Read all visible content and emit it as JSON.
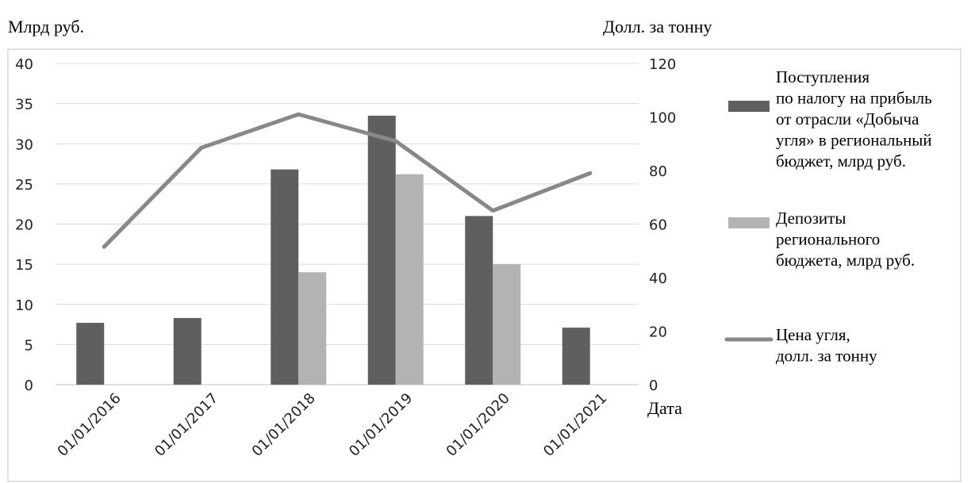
{
  "chart_data": {
    "type": "bar",
    "categories": [
      "01/01/2016",
      "01/01/2017",
      "01/01/2018",
      "01/01/2019",
      "01/01/2020",
      "01/01/2021"
    ],
    "ylabel_left": "Млрд руб.",
    "ylabel_right": "Долл. за тонну",
    "xlabel": "Дата",
    "ylim_left": [
      0,
      40
    ],
    "yticks_left": [
      "0",
      "5",
      "10",
      "15",
      "20",
      "25",
      "30",
      "35",
      "40"
    ],
    "ylim_right": [
      0,
      120
    ],
    "yticks_right": [
      "0",
      "20",
      "40",
      "60",
      "80",
      "100",
      "120"
    ],
    "grid": true,
    "legend_position": "right",
    "series": [
      {
        "name": "Поступления по налогу на прибыль от отрасли «Добыча угля» в региональный бюджет, млрд руб.",
        "legend_lines": [
          "Поступления",
          "по налогу на прибыль",
          "от отрасли «Добыча",
          "угля» в региональный",
          "бюджет, млрд руб."
        ],
        "type": "bar",
        "axis": "left",
        "color": "#5f5f5f",
        "values": [
          7.7,
          8.3,
          26.8,
          33.5,
          21.0,
          7.1
        ]
      },
      {
        "name": "Депозиты регионального бюджета, млрд руб.",
        "legend_lines": [
          "Депозиты",
          "регионального",
          "бюджета, млрд руб."
        ],
        "type": "bar",
        "axis": "left",
        "color": "#b3b3b3",
        "values": [
          null,
          null,
          14.0,
          26.2,
          15.0,
          null
        ]
      },
      {
        "name": "Цена угля, долл. за тонну",
        "legend_lines": [
          "Цена угля,",
          "долл. за тонну"
        ],
        "type": "line",
        "axis": "right",
        "color": "#888888",
        "values": [
          51.5,
          88.5,
          101,
          91,
          65,
          79
        ]
      }
    ]
  }
}
